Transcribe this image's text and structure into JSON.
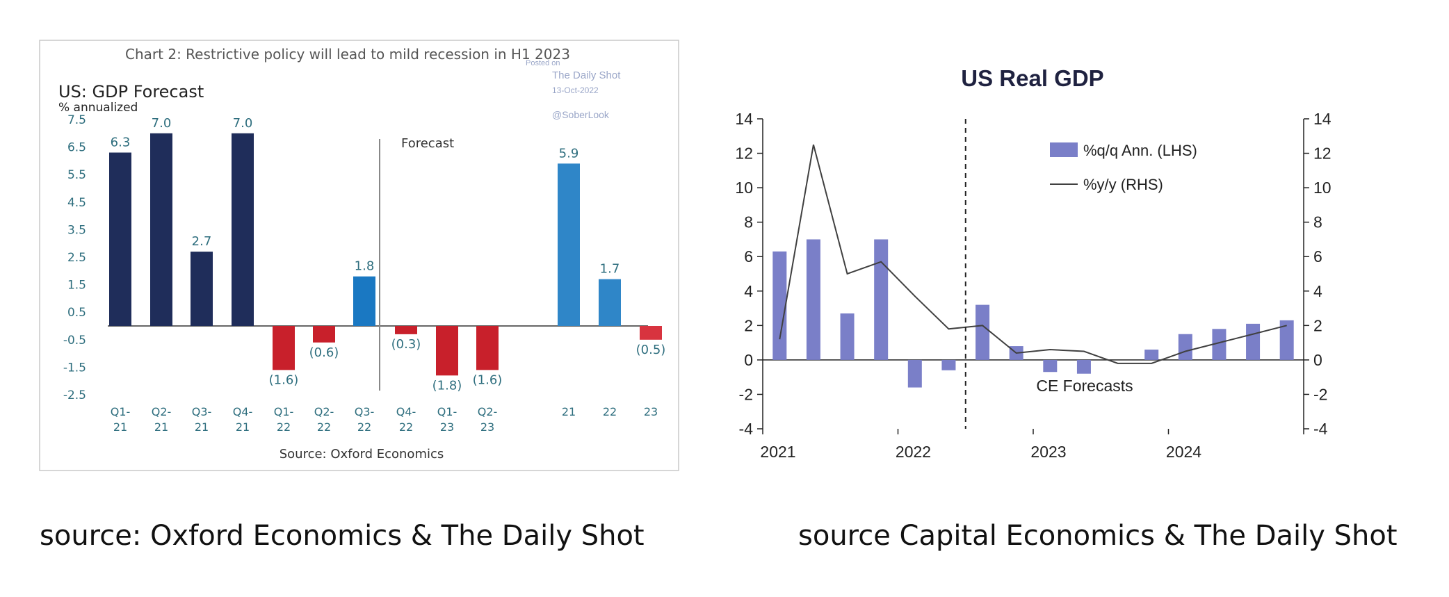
{
  "chart_data": [
    {
      "type": "bar",
      "title": "Chart 2: Restrictive policy will lead to mild recession in H1 2023",
      "subtitle": "US: GDP Forecast",
      "ylabel": "% annualized",
      "ylim": [
        -2.5,
        7.5
      ],
      "yticks": [
        "7.5",
        "6.5",
        "5.5",
        "4.5",
        "3.5",
        "2.5",
        "1.5",
        "0.5",
        "-0.5",
        "-1.5",
        "-2.5"
      ],
      "forecast_label": "Forecast",
      "source": "Source: Oxford Economics",
      "watermark": {
        "posted": "Posted on",
        "site": "The Daily Shot",
        "date": "13-Oct-2022",
        "handle": "@SoberLook"
      },
      "bars": [
        {
          "cat1": "Q1-",
          "cat2": "21",
          "value": 6.3,
          "label": "6.3",
          "kind": "actual"
        },
        {
          "cat1": "Q2-",
          "cat2": "21",
          "value": 7.0,
          "label": "7.0",
          "kind": "actual"
        },
        {
          "cat1": "Q3-",
          "cat2": "21",
          "value": 2.7,
          "label": "2.7",
          "kind": "actual"
        },
        {
          "cat1": "Q4-",
          "cat2": "21",
          "value": 7.0,
          "label": "7.0",
          "kind": "actual"
        },
        {
          "cat1": "Q1-",
          "cat2": "22",
          "value": -1.6,
          "label": "(1.6)",
          "kind": "negative"
        },
        {
          "cat1": "Q2-",
          "cat2": "22",
          "value": -0.6,
          "label": "(0.6)",
          "kind": "negative"
        },
        {
          "cat1": "Q3-",
          "cat2": "22",
          "value": 1.8,
          "label": "1.8",
          "kind": "positive"
        },
        {
          "cat1": "Q4-",
          "cat2": "22",
          "value": -0.3,
          "label": "(0.3)",
          "kind": "negative"
        },
        {
          "cat1": "Q1-",
          "cat2": "23",
          "value": -1.8,
          "label": "(1.8)",
          "kind": "negative"
        },
        {
          "cat1": "Q2-",
          "cat2": "23",
          "value": -1.6,
          "label": "(1.6)",
          "kind": "negative"
        },
        {
          "cat1": "21",
          "cat2": "",
          "value": 5.9,
          "label": "5.9",
          "kind": "annual"
        },
        {
          "cat1": "22",
          "cat2": "",
          "value": 1.7,
          "label": "1.7",
          "kind": "annual"
        },
        {
          "cat1": "23",
          "cat2": "",
          "value": -0.5,
          "label": "(0.5)",
          "kind": "annual-neg"
        }
      ],
      "colors": {
        "actual": "#1f2d5a",
        "negative": "#c8202b",
        "positive": "#1a78c2",
        "annual": "#2f86c8",
        "annual-neg": "#d8333f",
        "axis_text": "#2e6e7e"
      }
    },
    {
      "type": "bar+line",
      "title": "US Real GDP",
      "ylim": [
        -4,
        14
      ],
      "yticks": [
        "14",
        "12",
        "10",
        "8",
        "6",
        "4",
        "2",
        "0",
        "-2",
        "-4"
      ],
      "x_tick_labels": [
        "2021",
        "2022",
        "2023",
        "2024"
      ],
      "x_quarters": [
        "2021Q1",
        "2021Q2",
        "2021Q3",
        "2021Q4",
        "2022Q1",
        "2022Q2",
        "2022Q3",
        "2022Q4",
        "2023Q1",
        "2023Q2",
        "2023Q3",
        "2023Q4",
        "2024Q1",
        "2024Q2",
        "2024Q3",
        "2024Q4"
      ],
      "legend": {
        "bars": "%q/q Ann. (LHS)",
        "line": "%y/y (RHS)"
      },
      "forecast_label": "CE Forecasts",
      "forecast_start_quarter": "2022Q3",
      "series": [
        {
          "name": "%q/q Ann. (LHS)",
          "type": "bar",
          "values": [
            6.3,
            7.0,
            2.7,
            7.0,
            -1.6,
            -0.6,
            3.2,
            0.8,
            -0.7,
            -0.8,
            0.0,
            0.6,
            1.5,
            1.8,
            2.1,
            2.3
          ]
        },
        {
          "name": "%y/y (RHS)",
          "type": "line",
          "x_index": [
            0,
            1,
            2,
            3,
            4,
            5,
            6,
            7,
            8,
            9,
            10,
            11,
            12,
            13,
            14,
            15
          ],
          "values": [
            1.2,
            12.5,
            5.0,
            5.7,
            3.7,
            1.8,
            2.0,
            0.4,
            0.6,
            0.5,
            -0.2,
            -0.2,
            0.5,
            1.0,
            1.5,
            2.0
          ]
        }
      ],
      "colors": {
        "bars": "#7a7fc8",
        "line": "#404040"
      }
    }
  ],
  "captions": {
    "left": "source: Oxford Economics & The Daily Shot",
    "right": "source  Capital Economics & The Daily Shot"
  }
}
